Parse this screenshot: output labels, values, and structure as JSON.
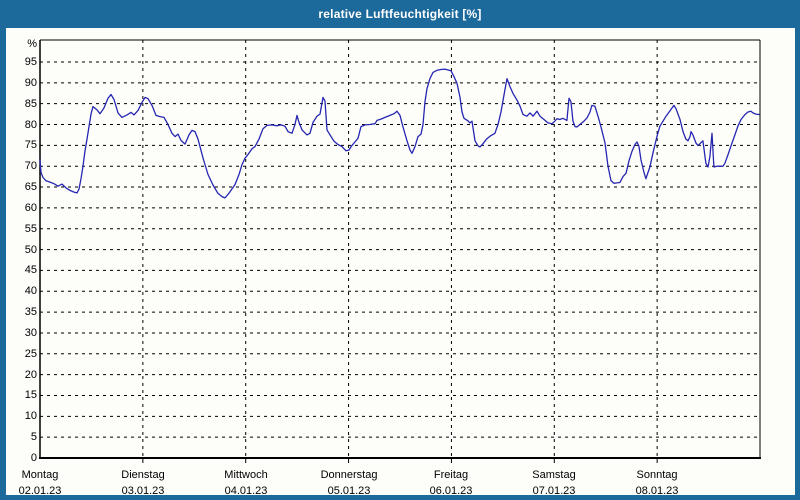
{
  "window": {
    "title": "relative Luftfeuchtigkeit [%]"
  },
  "colors": {
    "frame": "#1c699c",
    "title_text": "#ffffff",
    "plot_background": "#fdfdfa",
    "grid": "#000000",
    "line": "#2626b2"
  },
  "chart_data": {
    "type": "line",
    "title": "relative Luftfeuchtigkeit [%]",
    "xlabel": "",
    "ylabel": "%",
    "ylim": [
      0,
      100
    ],
    "ytick_step": 5,
    "yticks": [
      0,
      5,
      10,
      15,
      20,
      25,
      30,
      35,
      40,
      45,
      50,
      55,
      60,
      65,
      70,
      75,
      80,
      85,
      90,
      95
    ],
    "grid": true,
    "legend": "none",
    "x_days": [
      {
        "name": "Montag",
        "date": "02.01.23"
      },
      {
        "name": "Dienstag",
        "date": "03.01.23"
      },
      {
        "name": "Mittwoch",
        "date": "04.01.23"
      },
      {
        "name": "Donnerstag",
        "date": "05.01.23"
      },
      {
        "name": "Freitag",
        "date": "06.01.23"
      },
      {
        "name": "Samstag",
        "date": "07.01.23"
      },
      {
        "name": "Sonntag",
        "date": "08.01.23"
      }
    ],
    "series": [
      {
        "name": "relative Luftfeuchtigkeit",
        "color": "#2626b2",
        "x_unit": "days_since_monday_00h",
        "points": [
          [
            0.0,
            71.5
          ],
          [
            0.01,
            68.5
          ],
          [
            0.029,
            67.3
          ],
          [
            0.058,
            66.5
          ],
          [
            0.097,
            66.2
          ],
          [
            0.136,
            65.8
          ],
          [
            0.175,
            65.2
          ],
          [
            0.214,
            65.7
          ],
          [
            0.253,
            64.8
          ],
          [
            0.292,
            64.2
          ],
          [
            0.331,
            63.8
          ],
          [
            0.36,
            63.6
          ],
          [
            0.379,
            64.5
          ],
          [
            0.399,
            67.0
          ],
          [
            0.418,
            70.0
          ],
          [
            0.437,
            73.5
          ],
          [
            0.457,
            76.5
          ],
          [
            0.476,
            79.5
          ],
          [
            0.496,
            82.5
          ],
          [
            0.515,
            84.3
          ],
          [
            0.554,
            83.5
          ],
          [
            0.583,
            82.6
          ],
          [
            0.622,
            84.0
          ],
          [
            0.661,
            86.3
          ],
          [
            0.69,
            87.2
          ],
          [
            0.719,
            86.0
          ],
          [
            0.758,
            82.8
          ],
          [
            0.797,
            81.7
          ],
          [
            0.846,
            82.3
          ],
          [
            0.885,
            82.9
          ],
          [
            0.914,
            82.3
          ],
          [
            0.953,
            83.4
          ],
          [
            0.992,
            85.3
          ],
          [
            1.021,
            86.5
          ],
          [
            1.05,
            86.2
          ],
          [
            1.089,
            84.6
          ],
          [
            1.128,
            82.2
          ],
          [
            1.167,
            81.9
          ],
          [
            1.206,
            81.7
          ],
          [
            1.244,
            80.0
          ],
          [
            1.283,
            77.9
          ],
          [
            1.313,
            77.1
          ],
          [
            1.342,
            77.7
          ],
          [
            1.371,
            76.2
          ],
          [
            1.41,
            75.3
          ],
          [
            1.449,
            77.5
          ],
          [
            1.478,
            78.6
          ],
          [
            1.507,
            78.3
          ],
          [
            1.536,
            76.5
          ],
          [
            1.585,
            72.0
          ],
          [
            1.633,
            68.0
          ],
          [
            1.682,
            65.5
          ],
          [
            1.73,
            63.5
          ],
          [
            1.769,
            62.7
          ],
          [
            1.798,
            62.4
          ],
          [
            1.837,
            63.5
          ],
          [
            1.896,
            65.6
          ],
          [
            1.935,
            68.0
          ],
          [
            1.964,
            70.4
          ],
          [
            1.993,
            71.9
          ],
          [
            2.022,
            72.8
          ],
          [
            2.061,
            74.2
          ],
          [
            2.09,
            74.7
          ],
          [
            2.129,
            76.5
          ],
          [
            2.168,
            79.0
          ],
          [
            2.207,
            79.8
          ],
          [
            2.256,
            79.9
          ],
          [
            2.304,
            79.7
          ],
          [
            2.343,
            79.9
          ],
          [
            2.382,
            79.6
          ],
          [
            2.411,
            78.3
          ],
          [
            2.45,
            77.9
          ],
          [
            2.479,
            80.0
          ],
          [
            2.499,
            82.2
          ],
          [
            2.518,
            80.5
          ],
          [
            2.547,
            78.7
          ],
          [
            2.596,
            77.5
          ],
          [
            2.625,
            77.9
          ],
          [
            2.654,
            80.5
          ],
          [
            2.693,
            82.0
          ],
          [
            2.722,
            82.5
          ],
          [
            2.751,
            86.5
          ],
          [
            2.771,
            85.6
          ],
          [
            2.79,
            78.7
          ],
          [
            2.819,
            77.5
          ],
          [
            2.858,
            76.0
          ],
          [
            2.897,
            75.2
          ],
          [
            2.936,
            74.7
          ],
          [
            2.975,
            73.7
          ],
          [
            3.004,
            73.9
          ],
          [
            3.033,
            75.0
          ],
          [
            3.062,
            75.8
          ],
          [
            3.092,
            76.7
          ],
          [
            3.121,
            79.5
          ],
          [
            3.16,
            79.9
          ],
          [
            3.208,
            80.0
          ],
          [
            3.257,
            80.2
          ],
          [
            3.276,
            81.0
          ],
          [
            3.315,
            81.3
          ],
          [
            3.354,
            81.7
          ],
          [
            3.403,
            82.2
          ],
          [
            3.442,
            82.6
          ],
          [
            3.471,
            83.2
          ],
          [
            3.5,
            82.2
          ],
          [
            3.529,
            79.4
          ],
          [
            3.568,
            76.1
          ],
          [
            3.597,
            73.9
          ],
          [
            3.617,
            73.1
          ],
          [
            3.646,
            74.7
          ],
          [
            3.675,
            77.1
          ],
          [
            3.704,
            77.7
          ],
          [
            3.724,
            80.0
          ],
          [
            3.743,
            85.5
          ],
          [
            3.762,
            88.5
          ],
          [
            3.791,
            91.0
          ],
          [
            3.821,
            92.5
          ],
          [
            3.86,
            93.0
          ],
          [
            3.898,
            93.2
          ],
          [
            3.937,
            93.3
          ],
          [
            3.976,
            93.0
          ],
          [
            3.996,
            92.9
          ],
          [
            4.025,
            91.5
          ],
          [
            4.054,
            89.9
          ],
          [
            4.083,
            86.5
          ],
          [
            4.103,
            83.0
          ],
          [
            4.122,
            81.5
          ],
          [
            4.161,
            80.9
          ],
          [
            4.18,
            80.4
          ],
          [
            4.2,
            80.8
          ],
          [
            4.229,
            76.1
          ],
          [
            4.258,
            74.9
          ],
          [
            4.277,
            74.6
          ],
          [
            4.307,
            75.4
          ],
          [
            4.345,
            76.6
          ],
          [
            4.375,
            77.2
          ],
          [
            4.423,
            77.9
          ],
          [
            4.453,
            80.0
          ],
          [
            4.482,
            83.0
          ],
          [
            4.52,
            88.3
          ],
          [
            4.54,
            91.0
          ],
          [
            4.569,
            89.1
          ],
          [
            4.598,
            87.5
          ],
          [
            4.637,
            85.9
          ],
          [
            4.667,
            84.4
          ],
          [
            4.696,
            82.4
          ],
          [
            4.734,
            82.0
          ],
          [
            4.764,
            82.8
          ],
          [
            4.793,
            82.0
          ],
          [
            4.832,
            83.2
          ],
          [
            4.861,
            82.0
          ],
          [
            4.9,
            81.2
          ],
          [
            4.938,
            80.4
          ],
          [
            4.977,
            80.2
          ],
          [
            4.997,
            80.6
          ],
          [
            5.026,
            81.4
          ],
          [
            5.055,
            81.2
          ],
          [
            5.084,
            81.5
          ],
          [
            5.123,
            81.0
          ],
          [
            5.143,
            86.3
          ],
          [
            5.162,
            85.5
          ],
          [
            5.182,
            80.8
          ],
          [
            5.201,
            79.5
          ],
          [
            5.22,
            79.4
          ],
          [
            5.249,
            80.0
          ],
          [
            5.288,
            80.8
          ],
          [
            5.318,
            81.6
          ],
          [
            5.347,
            83.0
          ],
          [
            5.366,
            84.6
          ],
          [
            5.395,
            84.4
          ],
          [
            5.425,
            82.0
          ],
          [
            5.454,
            79.4
          ],
          [
            5.493,
            75.6
          ],
          [
            5.522,
            70.0
          ],
          [
            5.551,
            66.5
          ],
          [
            5.58,
            65.9
          ],
          [
            5.609,
            66.0
          ],
          [
            5.638,
            66.1
          ],
          [
            5.668,
            67.5
          ],
          [
            5.697,
            68.3
          ],
          [
            5.726,
            71.3
          ],
          [
            5.755,
            73.5
          ],
          [
            5.784,
            75.2
          ],
          [
            5.804,
            75.8
          ],
          [
            5.823,
            74.8
          ],
          [
            5.843,
            71.5
          ],
          [
            5.872,
            68.5
          ],
          [
            5.891,
            67.0
          ],
          [
            5.911,
            68.5
          ],
          [
            5.93,
            69.8
          ],
          [
            5.959,
            73.1
          ],
          [
            5.998,
            77.1
          ],
          [
            6.027,
            79.6
          ],
          [
            6.057,
            80.8
          ],
          [
            6.086,
            82.0
          ],
          [
            6.125,
            83.3
          ],
          [
            6.163,
            84.6
          ],
          [
            6.183,
            83.8
          ],
          [
            6.222,
            81.2
          ],
          [
            6.251,
            78.3
          ],
          [
            6.28,
            76.5
          ],
          [
            6.3,
            76.1
          ],
          [
            6.319,
            77.1
          ],
          [
            6.329,
            78.3
          ],
          [
            6.348,
            77.5
          ],
          [
            6.377,
            75.6
          ],
          [
            6.397,
            75.0
          ],
          [
            6.416,
            75.4
          ],
          [
            6.445,
            76.1
          ],
          [
            6.474,
            70.7
          ],
          [
            6.494,
            69.8
          ],
          [
            6.513,
            72.3
          ],
          [
            6.533,
            77.9
          ],
          [
            6.552,
            69.8
          ],
          [
            6.581,
            70.0
          ],
          [
            6.611,
            70.0
          ],
          [
            6.64,
            70.0
          ],
          [
            6.659,
            70.7
          ],
          [
            6.688,
            72.7
          ],
          [
            6.717,
            74.8
          ],
          [
            6.756,
            77.5
          ],
          [
            6.785,
            79.6
          ],
          [
            6.815,
            81.2
          ],
          [
            6.854,
            82.4
          ],
          [
            6.883,
            83.0
          ],
          [
            6.912,
            83.2
          ],
          [
            6.931,
            82.8
          ],
          [
            6.96,
            82.5
          ],
          [
            6.99,
            82.4
          ]
        ]
      }
    ]
  }
}
